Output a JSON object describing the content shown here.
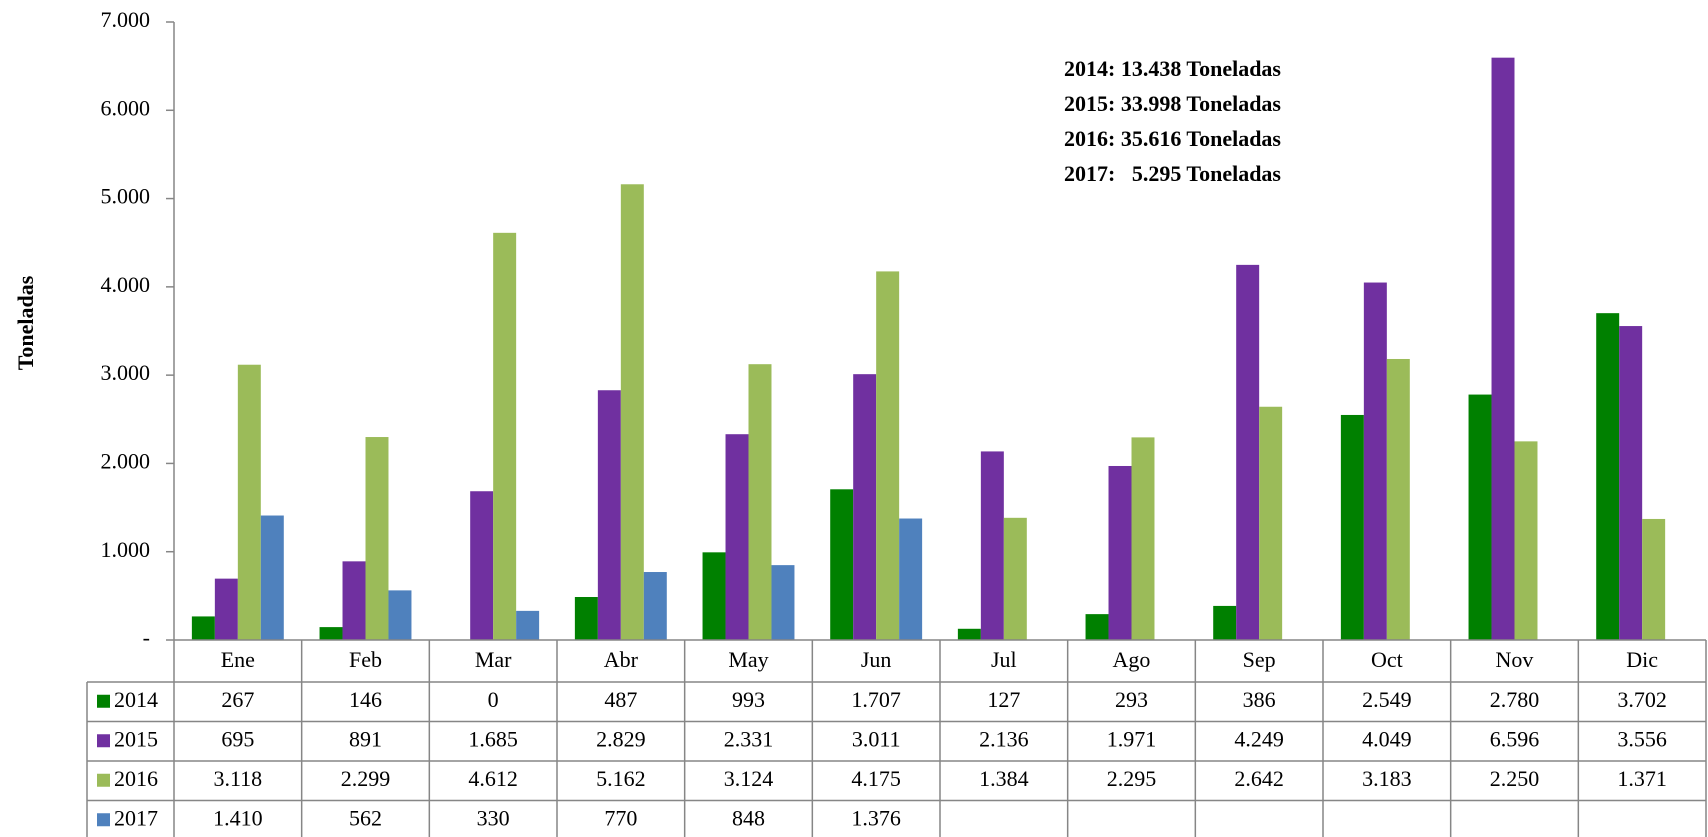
{
  "chart_data": {
    "type": "bar",
    "y_label": "Toneladas",
    "annotations": [
      "2014: 13.438 Toneladas",
      "2015: 33.998 Toneladas",
      "2016: 35.616 Toneladas",
      "2017:   5.295 Toneladas"
    ],
    "categories": [
      "Ene",
      "Feb",
      "Mar",
      "Abr",
      "May",
      "Jun",
      "Jul",
      "Ago",
      "Sep",
      "Oct",
      "Nov",
      "Dic"
    ],
    "series": [
      {
        "name": "2014",
        "color": "#008000",
        "values": [
          267,
          146,
          0,
          487,
          993,
          1707,
          127,
          293,
          386,
          2549,
          2780,
          3702
        ],
        "value_labels": [
          "267",
          "146",
          "0",
          "487",
          "993",
          "1.707",
          "127",
          "293",
          "386",
          "2.549",
          "2.780",
          "3.702"
        ]
      },
      {
        "name": "2015",
        "color": "#7030a0",
        "values": [
          695,
          891,
          1685,
          2829,
          2331,
          3011,
          2136,
          1971,
          4249,
          4049,
          6596,
          3556
        ],
        "value_labels": [
          "695",
          "891",
          "1.685",
          "2.829",
          "2.331",
          "3.011",
          "2.136",
          "1.971",
          "4.249",
          "4.049",
          "6.596",
          "3.556"
        ]
      },
      {
        "name": "2016",
        "color": "#9bbb59",
        "values": [
          3118,
          2299,
          4612,
          5162,
          3124,
          4175,
          1384,
          2295,
          2642,
          3183,
          2250,
          1371
        ],
        "value_labels": [
          "3.118",
          "2.299",
          "4.612",
          "5.162",
          "3.124",
          "4.175",
          "1.384",
          "2.295",
          "2.642",
          "3.183",
          "2.250",
          "1.371"
        ]
      },
      {
        "name": "2017",
        "color": "#4f81bd",
        "values": [
          1410,
          562,
          330,
          770,
          848,
          1376,
          null,
          null,
          null,
          null,
          null,
          null
        ],
        "value_labels": [
          "1.410",
          "562",
          "330",
          "770",
          "848",
          "1.376",
          null,
          null,
          null,
          null,
          null,
          null
        ]
      }
    ],
    "ylim": [
      0,
      7000
    ],
    "yticks": [
      {
        "value": 0,
        "label": "-"
      },
      {
        "value": 1000,
        "label": "1.000"
      },
      {
        "value": 2000,
        "label": "2.000"
      },
      {
        "value": 3000,
        "label": "3.000"
      },
      {
        "value": 4000,
        "label": "4.000"
      },
      {
        "value": 5000,
        "label": "5.000"
      },
      {
        "value": 6000,
        "label": "6.000"
      },
      {
        "value": 7000,
        "label": "7.000"
      }
    ],
    "grid": false
  }
}
